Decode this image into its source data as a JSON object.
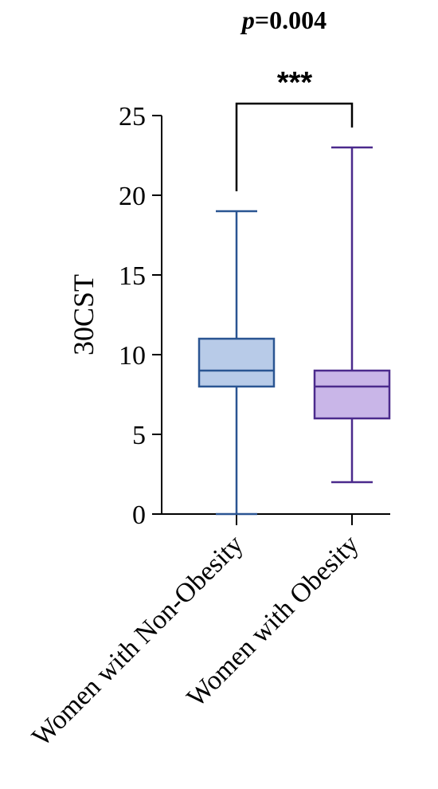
{
  "chart_data": {
    "type": "boxplot",
    "title": "",
    "ylabel": "30CST",
    "ylim": [
      0,
      25
    ],
    "yticks": [
      "0",
      "5",
      "10",
      "15",
      "20",
      "25"
    ],
    "categories": [
      "Women with Non-Obesity",
      "Women with Obesity"
    ],
    "boxes": [
      {
        "min": 0,
        "q1": 8,
        "median": 9,
        "q3": 11,
        "max": 19,
        "stroke": "#2a5592",
        "fill": "#b8cbe8"
      },
      {
        "min": 2,
        "q1": 6,
        "median": 8,
        "q3": 9,
        "max": 23,
        "stroke": "#4b2a8c",
        "fill": "#c9b6e8"
      }
    ],
    "significance": {
      "p_prefix": "p",
      "p_rest": "=0.004",
      "stars": "***"
    },
    "grid": false
  }
}
